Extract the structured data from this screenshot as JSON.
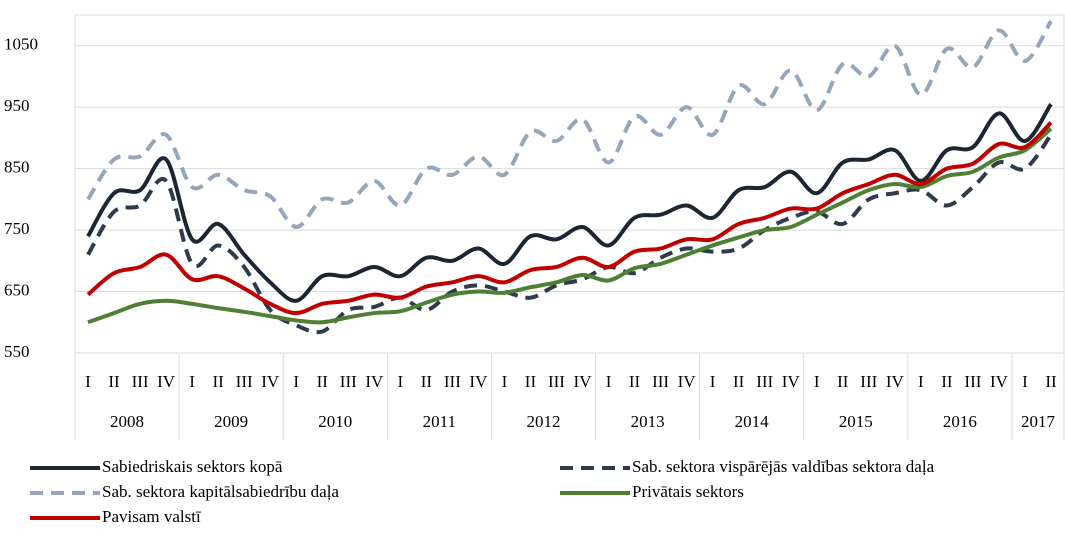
{
  "chart_data": {
    "type": "line",
    "categories": [
      "I",
      "II",
      "III",
      "IV",
      "I",
      "II",
      "III",
      "IV",
      "I",
      "II",
      "III",
      "IV",
      "I",
      "II",
      "III",
      "IV",
      "I",
      "II",
      "III",
      "IV",
      "I",
      "II",
      "III",
      "IV",
      "I",
      "II",
      "III",
      "IV",
      "I",
      "II",
      "III",
      "IV",
      "I",
      "II",
      "III",
      "IV",
      "I",
      "II"
    ],
    "years": [
      "2008",
      "2009",
      "2010",
      "2011",
      "2012",
      "2013",
      "2014",
      "2015",
      "2016",
      "2017"
    ],
    "ylim": [
      550,
      1100
    ],
    "yticks": [
      550,
      650,
      750,
      850,
      950,
      1050
    ],
    "grid": true,
    "legend": "bottom",
    "series": [
      {
        "name": "Sabiedriskais sektors kopā",
        "color": "#1c2533",
        "dash": false,
        "values": [
          740,
          810,
          815,
          865,
          735,
          760,
          710,
          665,
          635,
          675,
          675,
          690,
          675,
          705,
          700,
          720,
          695,
          740,
          735,
          755,
          725,
          770,
          775,
          790,
          770,
          815,
          820,
          845,
          810,
          860,
          865,
          880,
          830,
          880,
          885,
          940,
          895,
          955
        ]
      },
      {
        "name": "Sab. sektora vispārējās valdības sektora daļa",
        "color": "#2e3a4e",
        "dash": true,
        "values": [
          710,
          780,
          790,
          830,
          695,
          725,
          690,
          620,
          595,
          585,
          620,
          625,
          640,
          620,
          650,
          660,
          650,
          640,
          660,
          670,
          690,
          680,
          705,
          720,
          715,
          720,
          750,
          770,
          780,
          760,
          800,
          810,
          815,
          790,
          820,
          860,
          850,
          905
        ]
      },
      {
        "name": "Sab. sektora kapitālsabiedrību daļa",
        "color": "#95a6bc",
        "dash": true,
        "values": [
          800,
          865,
          870,
          905,
          820,
          840,
          815,
          805,
          755,
          800,
          795,
          830,
          790,
          850,
          840,
          870,
          840,
          910,
          895,
          930,
          860,
          935,
          905,
          950,
          905,
          985,
          955,
          1010,
          945,
          1020,
          1000,
          1050,
          970,
          1045,
          1015,
          1075,
          1025,
          1090
        ]
      },
      {
        "name": "Privātais sektors",
        "color": "#4f7f34",
        "dash": false,
        "values": [
          600,
          615,
          630,
          635,
          630,
          623,
          617,
          610,
          603,
          600,
          608,
          615,
          618,
          632,
          645,
          650,
          648,
          657,
          665,
          677,
          668,
          688,
          695,
          710,
          725,
          738,
          750,
          755,
          775,
          795,
          815,
          825,
          820,
          838,
          845,
          868,
          880,
          915
        ]
      },
      {
        "name": "Pavisam valstī",
        "color": "#c00000",
        "dash": false,
        "values": [
          645,
          680,
          690,
          710,
          670,
          675,
          655,
          630,
          615,
          630,
          635,
          645,
          640,
          658,
          665,
          675,
          665,
          685,
          690,
          705,
          690,
          715,
          720,
          735,
          735,
          760,
          770,
          785,
          785,
          810,
          825,
          840,
          825,
          850,
          858,
          890,
          885,
          925
        ]
      }
    ]
  }
}
